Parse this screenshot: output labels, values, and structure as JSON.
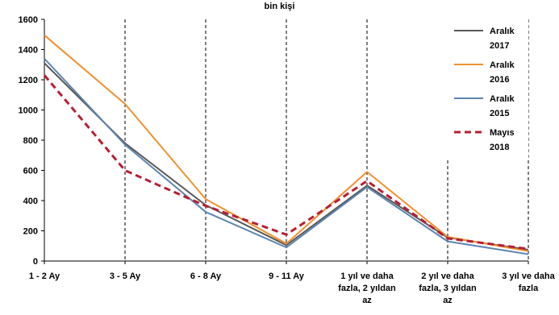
{
  "chart_data": {
    "type": "line",
    "title": "bin kişi",
    "xlabel": "",
    "ylabel": "",
    "categories": [
      [
        "1 - 2 Ay"
      ],
      [
        "3 - 5 Ay"
      ],
      [
        "6 - 8 Ay"
      ],
      [
        "9 - 11 Ay"
      ],
      [
        "1 yıl ve daha",
        "fazla, 2 yıldan",
        "az"
      ],
      [
        "2 yıl ve daha",
        "fazla, 3 yıldan",
        "az"
      ],
      [
        "3 yıl ve daha",
        "fazla"
      ]
    ],
    "ylim": [
      0,
      1600
    ],
    "yticks": [
      "0",
      "200",
      "400",
      "600",
      "800",
      "1000",
      "1200",
      "1400",
      "1600"
    ],
    "grid": "vertical dashed",
    "legend_position": "right",
    "series": [
      {
        "name": [
          "Aralık",
          "2017"
        ],
        "color": "#595959",
        "dash": "solid",
        "values": [
          1310,
          780,
          370,
          105,
          500,
          155,
          75
        ]
      },
      {
        "name": [
          "Aralık",
          "2016"
        ],
        "color": "#F0902E",
        "dash": "solid",
        "values": [
          1495,
          1040,
          410,
          115,
          590,
          160,
          65
        ]
      },
      {
        "name": [
          "Aralık",
          "2015"
        ],
        "color": "#5B84AF",
        "dash": "dashed-none",
        "values": [
          1340,
          770,
          325,
          90,
          490,
          130,
          45
        ]
      },
      {
        "name": [
          "Mayıs",
          "2018"
        ],
        "color": "#B51F34",
        "dash": "dashed",
        "values": [
          1230,
          600,
          365,
          175,
          530,
          150,
          80
        ]
      }
    ]
  }
}
